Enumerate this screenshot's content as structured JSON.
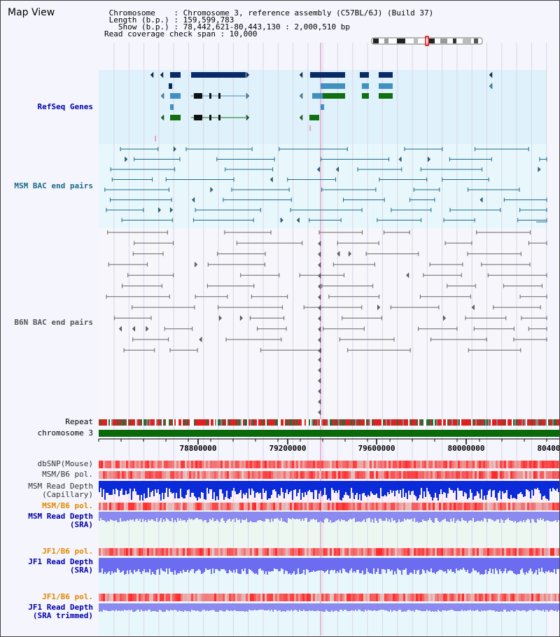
{
  "header": {
    "title": "Map View",
    "info_lines": [
      " Chromosome    : Chromosome 3, reference assembly (C57BL/6J) (Build 37)",
      " Length (b.p.) : 159,599,783",
      "   Show (b.p.) : 78,442,621-80,443,130 : 2,000,510 bp",
      "Read coverage check span : 10,000"
    ]
  },
  "labels": {
    "refseq": "RefSeq Genes",
    "msm_bac": "MSM BAC end pairs",
    "b6n_bac": "B6N BAC end pairs",
    "repeat": "Repeat",
    "chromosome": "chromosome 3",
    "dbsnp": "dbSNP(Mouse)",
    "msm_b6_pol": "MSM/B6 pol.",
    "msm_read_depth_cap_1": "MSM Read Depth",
    "msm_read_depth_cap_2": "(Capillary)",
    "msm_b6_pol_2": "MSM/B6 pol.",
    "msm_read_depth_sra_1": "MSM Read Depth",
    "msm_read_depth_sra_2": "(SRA)",
    "jf1_b6_pol": "JF1/B6 pol.",
    "jf1_read_depth_1": "JF1 Read Depth",
    "jf1_read_depth_2": "(SRA)",
    "jf1_b6_pol_2": "JF1/B6 pol.",
    "jf1_trim_1": "JF1 Read Depth",
    "jf1_trim_2": "(SRA trimmed)"
  },
  "axis": {
    "ticks": [
      "78800000",
      "79200000",
      "79600000",
      "80000000",
      "80400"
    ]
  },
  "colors": {
    "refseq_dark": "#0a2a66",
    "refseq_mid": "#4090c0",
    "refseq_green": "#107010",
    "msm_bac": "#1a6a8a",
    "b6n_bac": "#666666",
    "label_blue": "#0000aa",
    "label_orange": "#e08a00",
    "label_msm": "#1a6a8a"
  }
}
